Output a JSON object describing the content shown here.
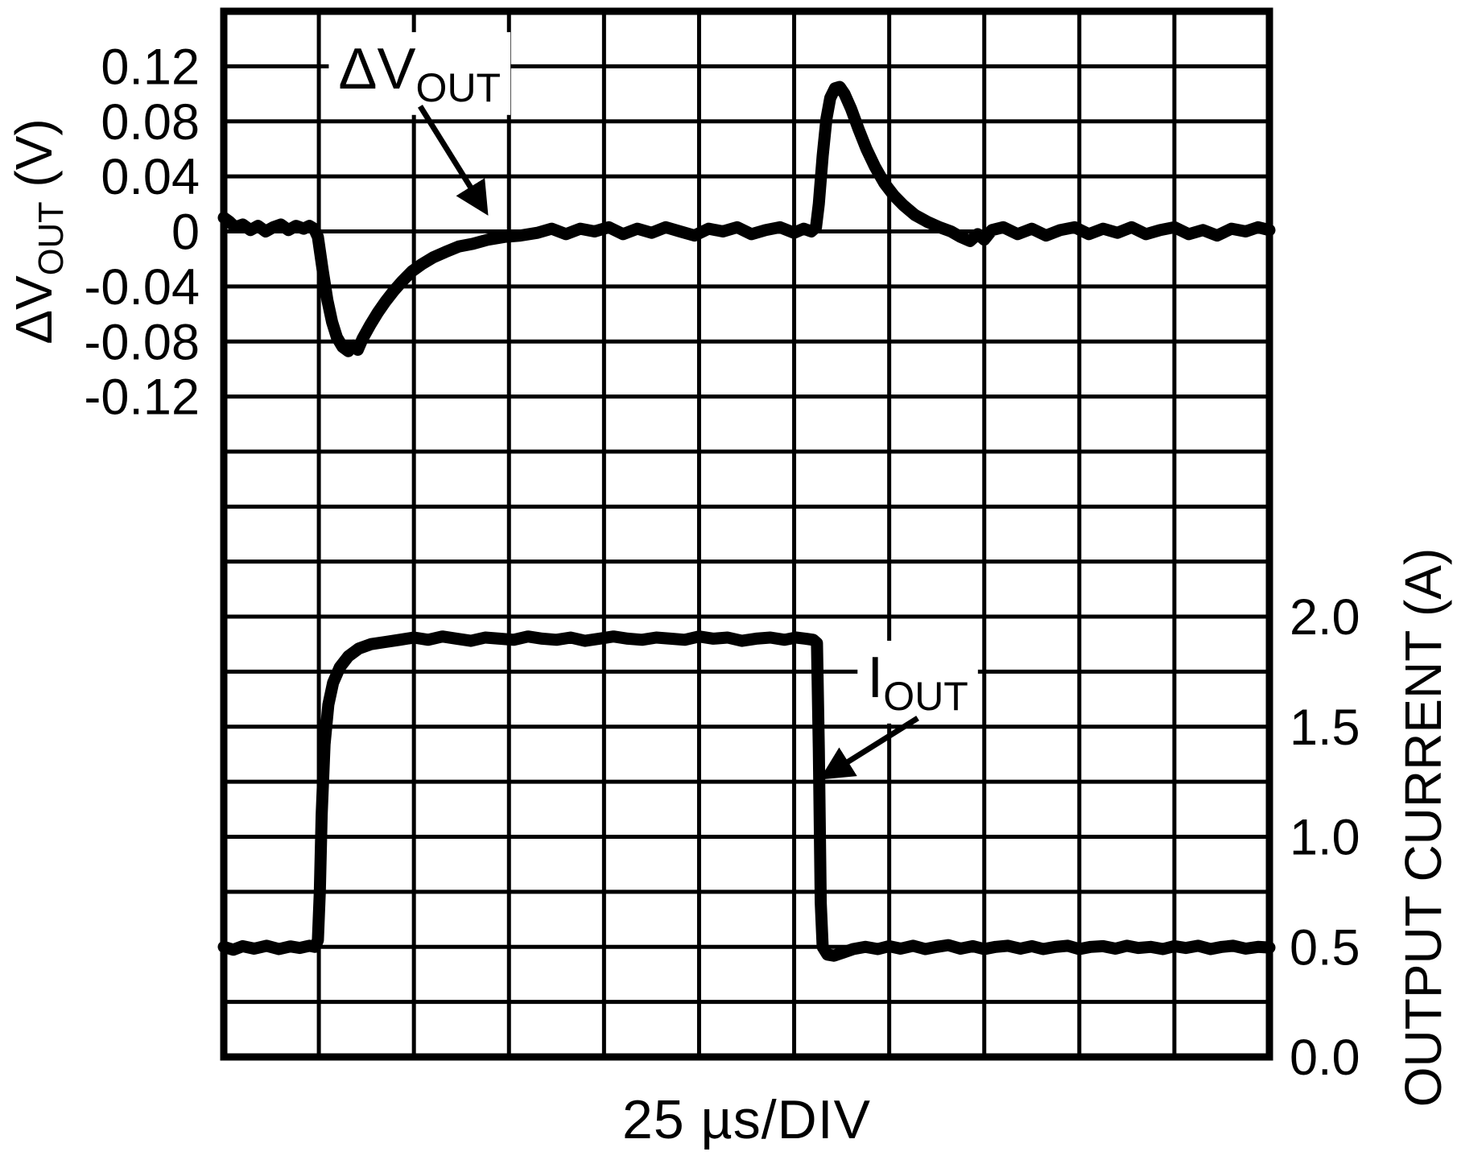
{
  "figure_title": "",
  "colors": {
    "foreground": "#000000",
    "background": "#ffffff"
  },
  "chart_data": {
    "type": "line",
    "title": "",
    "xlabel": "25 µs/DIV",
    "x_units": "divisions",
    "x_range": [
      0,
      11
    ],
    "grid": {
      "grid_on": true,
      "x_divisions": 11,
      "y_divisions": 19
    },
    "left_axis": {
      "label_parts": [
        {
          "t": "ΔV"
        },
        {
          "t": "OUT",
          "sub": true
        },
        {
          "t": " (V)"
        }
      ],
      "units": "V",
      "volts_per_div": 0.04,
      "zero_row_from_top": 4,
      "ticks": [
        {
          "label": "0.12",
          "value": 0.12
        },
        {
          "label": "0.08",
          "value": 0.08
        },
        {
          "label": "0.04",
          "value": 0.04
        },
        {
          "label": "0",
          "value": 0
        },
        {
          "label": "-0.04",
          "value": -0.04
        },
        {
          "label": "-0.08",
          "value": -0.08
        },
        {
          "label": "-0.12",
          "value": -0.12
        }
      ]
    },
    "right_axis": {
      "label_parts": [
        {
          "t": "OUTPUT CURRENT (A)"
        }
      ],
      "units": "A",
      "amps_per_div": 0.25,
      "zero_at_bottom": true,
      "ticks": [
        {
          "label": "2.0",
          "value": 2.0
        },
        {
          "label": "1.5",
          "value": 1.5
        },
        {
          "label": "1.0",
          "value": 1.0
        },
        {
          "label": "0.5",
          "value": 0.5
        },
        {
          "label": "0.0",
          "value": 0.0
        }
      ]
    },
    "series": [
      {
        "id": "delta-vout-trace",
        "name": "ΔVOUT",
        "axis": "left",
        "points": [
          [
            0,
            0.01
          ],
          [
            0.06,
            0.007
          ],
          [
            0.12,
            0.003
          ],
          [
            0.2,
            0.005
          ],
          [
            0.28,
            0.001
          ],
          [
            0.36,
            0.004
          ],
          [
            0.44,
            0.0
          ],
          [
            0.52,
            0.003
          ],
          [
            0.6,
            0.005
          ],
          [
            0.68,
            0.001
          ],
          [
            0.76,
            0.004
          ],
          [
            0.84,
            0.002
          ],
          [
            0.9,
            0.004
          ],
          [
            0.95,
            0.002
          ],
          [
            0.99,
            -0.004
          ],
          [
            1.04,
            -0.028
          ],
          [
            1.09,
            -0.05
          ],
          [
            1.14,
            -0.066
          ],
          [
            1.19,
            -0.077
          ],
          [
            1.25,
            -0.084
          ],
          [
            1.31,
            -0.087
          ],
          [
            1.36,
            -0.083
          ],
          [
            1.41,
            -0.086
          ],
          [
            1.46,
            -0.078
          ],
          [
            1.54,
            -0.068
          ],
          [
            1.62,
            -0.059
          ],
          [
            1.7,
            -0.051
          ],
          [
            1.79,
            -0.043
          ],
          [
            1.88,
            -0.036
          ],
          [
            1.98,
            -0.029
          ],
          [
            2.08,
            -0.024
          ],
          [
            2.2,
            -0.019
          ],
          [
            2.33,
            -0.015
          ],
          [
            2.47,
            -0.011
          ],
          [
            2.62,
            -0.009
          ],
          [
            2.78,
            -0.006
          ],
          [
            2.95,
            -0.004
          ],
          [
            3.12,
            -0.003
          ],
          [
            3.3,
            -0.001
          ],
          [
            3.45,
            0.002
          ],
          [
            3.6,
            -0.002
          ],
          [
            3.75,
            0.002
          ],
          [
            3.9,
            0.0
          ],
          [
            4.05,
            0.003
          ],
          [
            4.2,
            -0.002
          ],
          [
            4.35,
            0.002
          ],
          [
            4.5,
            -0.001
          ],
          [
            4.65,
            0.003
          ],
          [
            4.8,
            0.0
          ],
          [
            4.95,
            -0.003
          ],
          [
            5.1,
            0.002
          ],
          [
            5.25,
            0.0
          ],
          [
            5.4,
            0.003
          ],
          [
            5.55,
            -0.002
          ],
          [
            5.7,
            0.001
          ],
          [
            5.85,
            0.003
          ],
          [
            6.0,
            -0.001
          ],
          [
            6.1,
            0.002
          ],
          [
            6.18,
            0.0
          ],
          [
            6.23,
            0.003
          ],
          [
            6.26,
            0.02
          ],
          [
            6.3,
            0.055
          ],
          [
            6.34,
            0.082
          ],
          [
            6.38,
            0.097
          ],
          [
            6.43,
            0.104
          ],
          [
            6.48,
            0.105
          ],
          [
            6.53,
            0.1
          ],
          [
            6.6,
            0.089
          ],
          [
            6.68,
            0.074
          ],
          [
            6.76,
            0.06
          ],
          [
            6.85,
            0.047
          ],
          [
            6.95,
            0.035
          ],
          [
            7.05,
            0.026
          ],
          [
            7.15,
            0.019
          ],
          [
            7.27,
            0.012
          ],
          [
            7.4,
            0.007
          ],
          [
            7.53,
            0.003
          ],
          [
            7.65,
            0.0
          ],
          [
            7.75,
            -0.004
          ],
          [
            7.85,
            -0.007
          ],
          [
            7.93,
            -0.002
          ],
          [
            8.0,
            -0.006
          ],
          [
            8.08,
            0.001
          ],
          [
            8.2,
            0.003
          ],
          [
            8.35,
            -0.002
          ],
          [
            8.5,
            0.002
          ],
          [
            8.65,
            -0.003
          ],
          [
            8.8,
            0.001
          ],
          [
            8.95,
            0.003
          ],
          [
            9.1,
            -0.002
          ],
          [
            9.25,
            0.002
          ],
          [
            9.4,
            -0.001
          ],
          [
            9.55,
            0.003
          ],
          [
            9.7,
            -0.002
          ],
          [
            9.85,
            0.001
          ],
          [
            10.0,
            0.003
          ],
          [
            10.15,
            -0.002
          ],
          [
            10.3,
            0.001
          ],
          [
            10.45,
            -0.003
          ],
          [
            10.6,
            0.002
          ],
          [
            10.75,
            0.0
          ],
          [
            10.88,
            0.003
          ],
          [
            11,
            0.001
          ]
        ]
      },
      {
        "id": "iout-trace",
        "name": "IOUT",
        "axis": "right",
        "points": [
          [
            0,
            0.5
          ],
          [
            0.1,
            0.487
          ],
          [
            0.2,
            0.503
          ],
          [
            0.32,
            0.492
          ],
          [
            0.45,
            0.505
          ],
          [
            0.58,
            0.49
          ],
          [
            0.7,
            0.502
          ],
          [
            0.8,
            0.495
          ],
          [
            0.9,
            0.505
          ],
          [
            0.96,
            0.5
          ],
          [
            0.99,
            0.53
          ],
          [
            1.01,
            0.75
          ],
          [
            1.03,
            1.1
          ],
          [
            1.06,
            1.42
          ],
          [
            1.1,
            1.6
          ],
          [
            1.15,
            1.7
          ],
          [
            1.22,
            1.77
          ],
          [
            1.31,
            1.82
          ],
          [
            1.42,
            1.855
          ],
          [
            1.55,
            1.875
          ],
          [
            1.7,
            1.885
          ],
          [
            1.85,
            1.895
          ],
          [
            2.0,
            1.905
          ],
          [
            2.15,
            1.895
          ],
          [
            2.3,
            1.91
          ],
          [
            2.45,
            1.9
          ],
          [
            2.6,
            1.89
          ],
          [
            2.75,
            1.905
          ],
          [
            2.9,
            1.9
          ],
          [
            3.05,
            1.895
          ],
          [
            3.2,
            1.91
          ],
          [
            3.35,
            1.9
          ],
          [
            3.5,
            1.895
          ],
          [
            3.65,
            1.905
          ],
          [
            3.8,
            1.89
          ],
          [
            3.95,
            1.9
          ],
          [
            4.1,
            1.91
          ],
          [
            4.25,
            1.9
          ],
          [
            4.4,
            1.895
          ],
          [
            4.55,
            1.905
          ],
          [
            4.7,
            1.9
          ],
          [
            4.85,
            1.895
          ],
          [
            5.0,
            1.91
          ],
          [
            5.15,
            1.9
          ],
          [
            5.3,
            1.905
          ],
          [
            5.45,
            1.89
          ],
          [
            5.6,
            1.9
          ],
          [
            5.75,
            1.905
          ],
          [
            5.9,
            1.895
          ],
          [
            6.02,
            1.905
          ],
          [
            6.12,
            1.9
          ],
          [
            6.2,
            1.895
          ],
          [
            6.24,
            1.88
          ],
          [
            6.26,
            1.4
          ],
          [
            6.28,
            0.7
          ],
          [
            6.3,
            0.5
          ],
          [
            6.35,
            0.465
          ],
          [
            6.42,
            0.46
          ],
          [
            6.52,
            0.475
          ],
          [
            6.62,
            0.49
          ],
          [
            6.75,
            0.5
          ],
          [
            6.88,
            0.49
          ],
          [
            7.0,
            0.503
          ],
          [
            7.12,
            0.492
          ],
          [
            7.25,
            0.505
          ],
          [
            7.38,
            0.49
          ],
          [
            7.5,
            0.5
          ],
          [
            7.62,
            0.508
          ],
          [
            7.75,
            0.492
          ],
          [
            7.88,
            0.503
          ],
          [
            8.0,
            0.49
          ],
          [
            8.12,
            0.5
          ],
          [
            8.25,
            0.505
          ],
          [
            8.38,
            0.492
          ],
          [
            8.5,
            0.503
          ],
          [
            8.62,
            0.49
          ],
          [
            8.75,
            0.5
          ],
          [
            8.88,
            0.505
          ],
          [
            9.0,
            0.49
          ],
          [
            9.12,
            0.5
          ],
          [
            9.25,
            0.503
          ],
          [
            9.38,
            0.492
          ],
          [
            9.5,
            0.505
          ],
          [
            9.62,
            0.495
          ],
          [
            9.75,
            0.5
          ],
          [
            9.88,
            0.49
          ],
          [
            10.0,
            0.503
          ],
          [
            10.12,
            0.495
          ],
          [
            10.25,
            0.505
          ],
          [
            10.38,
            0.49
          ],
          [
            10.5,
            0.5
          ],
          [
            10.62,
            0.505
          ],
          [
            10.75,
            0.492
          ],
          [
            10.88,
            0.5
          ],
          [
            11,
            0.497
          ]
        ]
      }
    ],
    "annotations": [
      {
        "id": "delta-vout-annotation",
        "parts": [
          {
            "t": "ΔV"
          },
          {
            "t": "OUT",
            "sub": true
          }
        ],
        "axis": "left",
        "label_at": [
          2.06,
          0.1185
        ],
        "arrow_from": [
          2.066,
          0.091
        ],
        "arrow_to": [
          2.735,
          0.0167
        ]
      },
      {
        "id": "iout-annotation",
        "parts": [
          {
            "t": "I"
          },
          {
            "t": "OUT",
            "sub": true
          }
        ],
        "axis": "right",
        "label_at": [
          7.3,
          1.726
        ],
        "arrow_from": [
          7.3,
          1.539
        ],
        "arrow_to": [
          6.342,
          1.28
        ]
      }
    ]
  }
}
